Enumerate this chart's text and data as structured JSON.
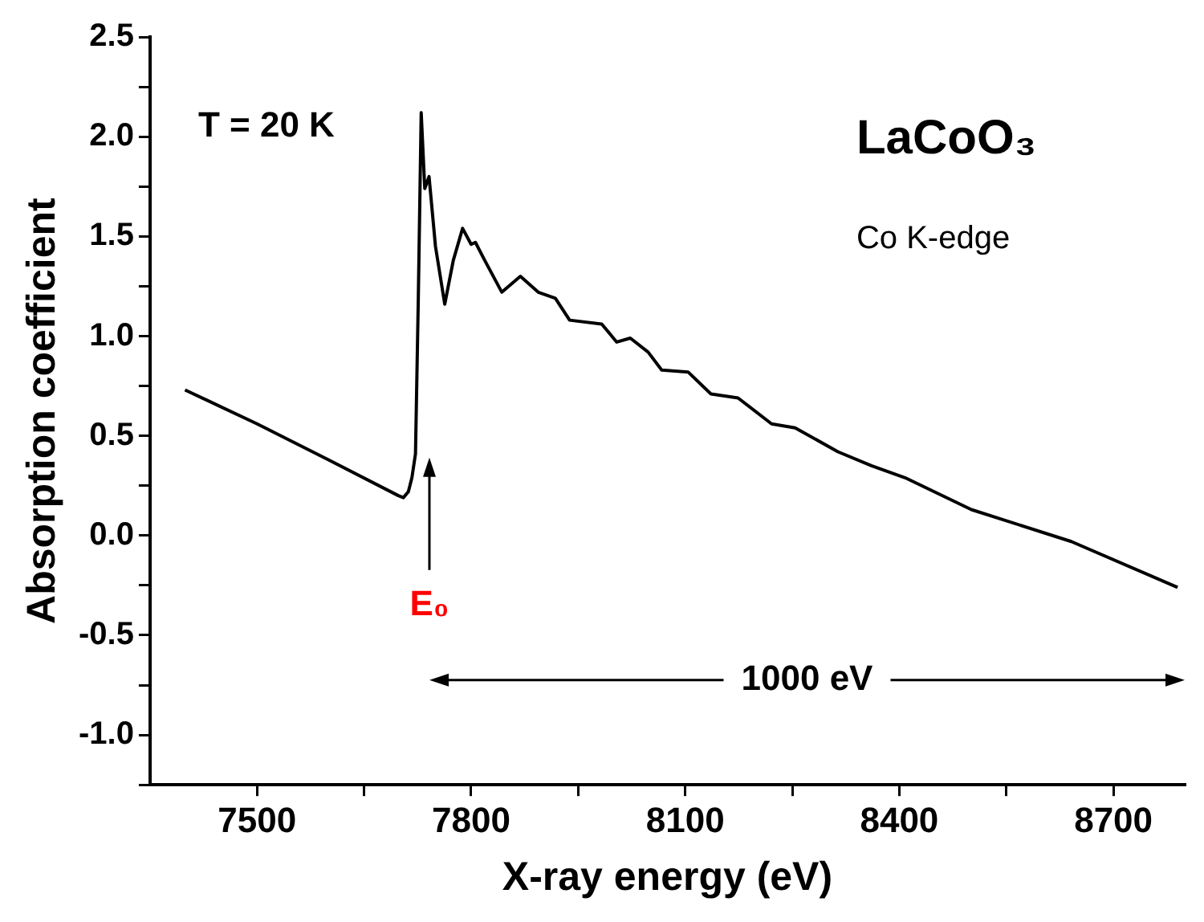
{
  "chart_data": {
    "type": "line",
    "xlabel": "X-ray energy (eV)",
    "ylabel": "Absorption coefficient",
    "xlim": [
      7350,
      8800
    ],
    "ylim": [
      -1.25,
      2.5
    ],
    "xticks": [
      {
        "value": 7500,
        "label": "7500"
      },
      {
        "value": 7650,
        "label": null
      },
      {
        "value": 7800,
        "label": "7800"
      },
      {
        "value": 7950,
        "label": null
      },
      {
        "value": 8100,
        "label": "8100"
      },
      {
        "value": 8250,
        "label": null
      },
      {
        "value": 8400,
        "label": "8400"
      },
      {
        "value": 8550,
        "label": null
      },
      {
        "value": 8700,
        "label": "8700"
      }
    ],
    "yticks": [
      {
        "value": -1.25,
        "label": null
      },
      {
        "value": -1,
        "label": "-1.0"
      },
      {
        "value": -0.75,
        "label": null
      },
      {
        "value": -0.5,
        "label": "-0.5"
      },
      {
        "value": -0.25,
        "label": null
      },
      {
        "value": 0,
        "label": "0.0"
      },
      {
        "value": 0.25,
        "label": null
      },
      {
        "value": 0.5,
        "label": "0.5"
      },
      {
        "value": 0.75,
        "label": null
      },
      {
        "value": 1,
        "label": "1.0"
      },
      {
        "value": 1.25,
        "label": null
      },
      {
        "value": 1.5,
        "label": "1.5"
      },
      {
        "value": 1.75,
        "label": null
      },
      {
        "value": 2,
        "label": "2.0"
      },
      {
        "value": 2.25,
        "label": null
      },
      {
        "value": 2.5,
        "label": "2.5"
      }
    ],
    "grid": false,
    "legend": false,
    "marker": "none",
    "line_style": "solid",
    "series": [
      {
        "color": "#000000",
        "x": [
          7399,
          7500,
          7600,
          7698,
          7705,
          7712,
          7717,
          7722,
          7726,
          7730,
          7735,
          7741,
          7750,
          7763,
          7775,
          7788,
          7800,
          7806,
          7819,
          7843,
          7869,
          7894,
          7918,
          7938,
          7983,
          8004,
          8023,
          8048,
          8067,
          8104,
          8136,
          8174,
          8221,
          8254,
          8314,
          8361,
          8408,
          8501,
          8641,
          8790
        ],
        "values": [
          0.73,
          0.56,
          0.38,
          0.2,
          0.19,
          0.22,
          0.29,
          0.41,
          1.2,
          2.12,
          1.74,
          1.8,
          1.45,
          1.16,
          1.38,
          1.54,
          1.46,
          1.47,
          1.38,
          1.22,
          1.3,
          1.22,
          1.19,
          1.08,
          1.06,
          0.97,
          0.99,
          0.92,
          0.83,
          0.82,
          0.71,
          0.69,
          0.56,
          0.54,
          0.42,
          0.35,
          0.29,
          0.13,
          -0.03,
          -0.26
        ]
      }
    ],
    "annotations": [
      "T = 20 K",
      "LaCoO₃",
      "Co K-edge",
      "E₀",
      "1000 eV"
    ]
  }
}
